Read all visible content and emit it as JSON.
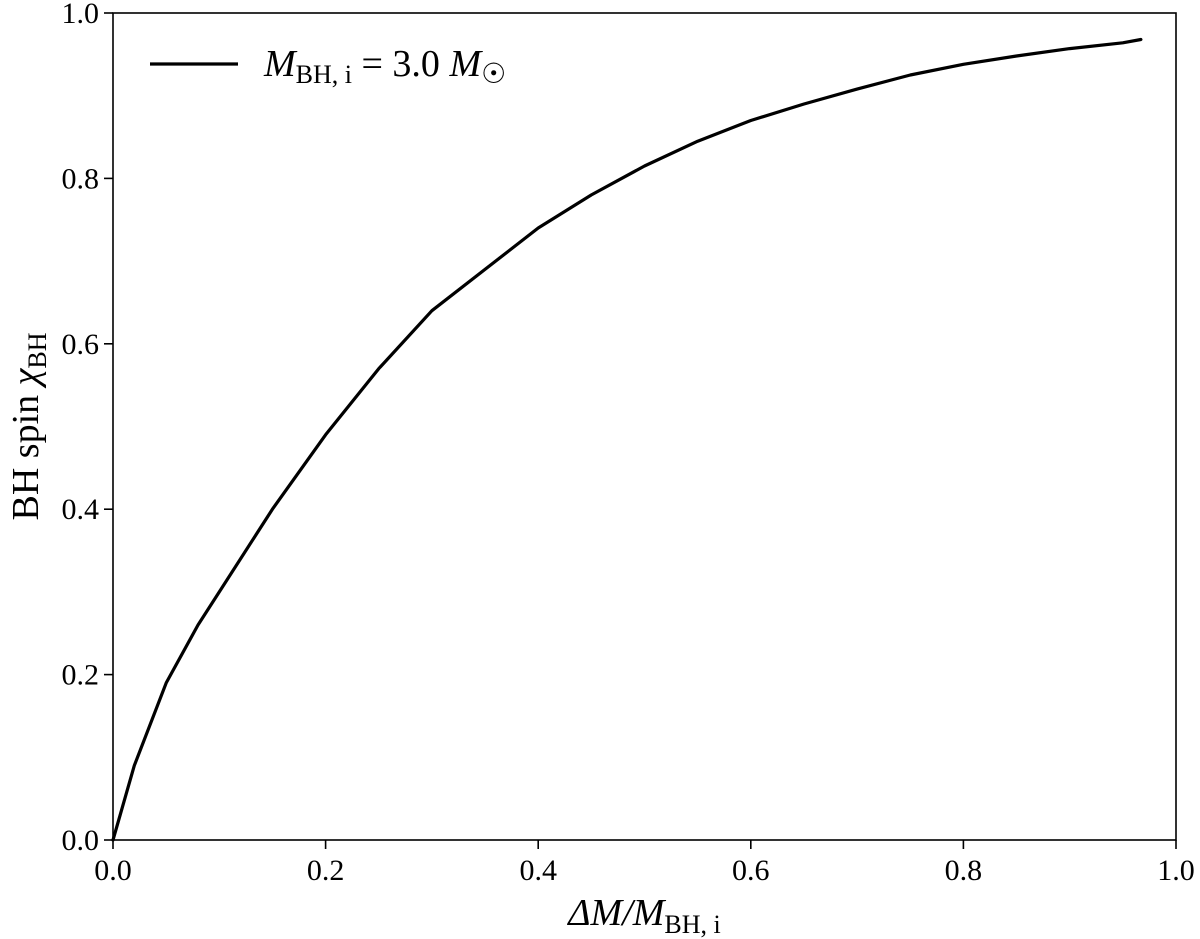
{
  "chart_data": {
    "type": "line",
    "title": "",
    "xlabel": {
      "main": "ΔM/M",
      "sub": "BH, i"
    },
    "ylabel": {
      "main": "BH spin χ",
      "sub": "BH"
    },
    "xlim": [
      0.0,
      1.0
    ],
    "ylim": [
      0.0,
      1.0
    ],
    "x_ticks": [
      "0.0",
      "0.2",
      "0.4",
      "0.6",
      "0.8",
      "1.0"
    ],
    "y_ticks": [
      "0.0",
      "0.2",
      "0.4",
      "0.6",
      "0.8",
      "1.0"
    ],
    "grid": false,
    "legend_position": "top-left",
    "series": [
      {
        "name": "M_BH,i = 3.0 M☉",
        "legend": {
          "m": "M",
          "sub": "BH, i",
          "eq": " = 3.0 ",
          "m2": "M",
          "sun": "☉"
        },
        "color": "#000000",
        "x": [
          0.0,
          0.02,
          0.05,
          0.08,
          0.1,
          0.15,
          0.2,
          0.25,
          0.3,
          0.35,
          0.4,
          0.45,
          0.5,
          0.55,
          0.6,
          0.65,
          0.7,
          0.75,
          0.8,
          0.85,
          0.9,
          0.95,
          0.967
        ],
        "y": [
          0.0,
          0.09,
          0.19,
          0.26,
          0.3,
          0.4,
          0.49,
          0.57,
          0.64,
          0.69,
          0.74,
          0.78,
          0.815,
          0.845,
          0.87,
          0.89,
          0.908,
          0.925,
          0.938,
          0.948,
          0.957,
          0.964,
          0.968
        ]
      }
    ]
  }
}
